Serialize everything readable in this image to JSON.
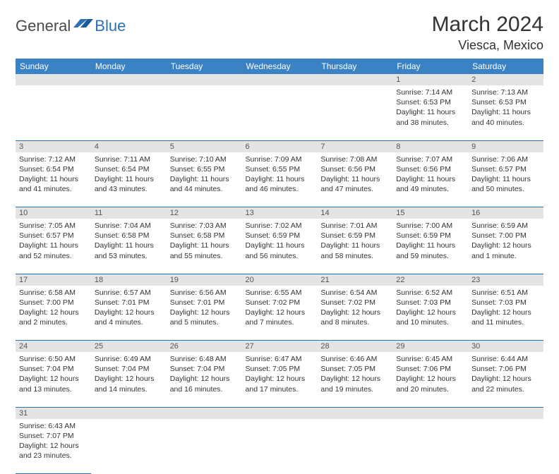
{
  "logo": {
    "part1": "General",
    "part2": "Blue"
  },
  "title": "March 2024",
  "location": "Viesca, Mexico",
  "colors": {
    "header_bg": "#3b82c4",
    "header_text": "#ffffff",
    "daynum_bg": "#e4e4e4",
    "border": "#2a72b5",
    "logo_gray": "#4a4a4a",
    "logo_blue": "#2a72b5",
    "text": "#333333"
  },
  "day_headers": [
    "Sunday",
    "Monday",
    "Tuesday",
    "Wednesday",
    "Thursday",
    "Friday",
    "Saturday"
  ],
  "weeks": [
    [
      null,
      null,
      null,
      null,
      null,
      {
        "n": "1",
        "sunrise": "Sunrise: 7:14 AM",
        "sunset": "Sunset: 6:53 PM",
        "daylight": "Daylight: 11 hours and 38 minutes."
      },
      {
        "n": "2",
        "sunrise": "Sunrise: 7:13 AM",
        "sunset": "Sunset: 6:53 PM",
        "daylight": "Daylight: 11 hours and 40 minutes."
      }
    ],
    [
      {
        "n": "3",
        "sunrise": "Sunrise: 7:12 AM",
        "sunset": "Sunset: 6:54 PM",
        "daylight": "Daylight: 11 hours and 41 minutes."
      },
      {
        "n": "4",
        "sunrise": "Sunrise: 7:11 AM",
        "sunset": "Sunset: 6:54 PM",
        "daylight": "Daylight: 11 hours and 43 minutes."
      },
      {
        "n": "5",
        "sunrise": "Sunrise: 7:10 AM",
        "sunset": "Sunset: 6:55 PM",
        "daylight": "Daylight: 11 hours and 44 minutes."
      },
      {
        "n": "6",
        "sunrise": "Sunrise: 7:09 AM",
        "sunset": "Sunset: 6:55 PM",
        "daylight": "Daylight: 11 hours and 46 minutes."
      },
      {
        "n": "7",
        "sunrise": "Sunrise: 7:08 AM",
        "sunset": "Sunset: 6:56 PM",
        "daylight": "Daylight: 11 hours and 47 minutes."
      },
      {
        "n": "8",
        "sunrise": "Sunrise: 7:07 AM",
        "sunset": "Sunset: 6:56 PM",
        "daylight": "Daylight: 11 hours and 49 minutes."
      },
      {
        "n": "9",
        "sunrise": "Sunrise: 7:06 AM",
        "sunset": "Sunset: 6:57 PM",
        "daylight": "Daylight: 11 hours and 50 minutes."
      }
    ],
    [
      {
        "n": "10",
        "sunrise": "Sunrise: 7:05 AM",
        "sunset": "Sunset: 6:57 PM",
        "daylight": "Daylight: 11 hours and 52 minutes."
      },
      {
        "n": "11",
        "sunrise": "Sunrise: 7:04 AM",
        "sunset": "Sunset: 6:58 PM",
        "daylight": "Daylight: 11 hours and 53 minutes."
      },
      {
        "n": "12",
        "sunrise": "Sunrise: 7:03 AM",
        "sunset": "Sunset: 6:58 PM",
        "daylight": "Daylight: 11 hours and 55 minutes."
      },
      {
        "n": "13",
        "sunrise": "Sunrise: 7:02 AM",
        "sunset": "Sunset: 6:59 PM",
        "daylight": "Daylight: 11 hours and 56 minutes."
      },
      {
        "n": "14",
        "sunrise": "Sunrise: 7:01 AM",
        "sunset": "Sunset: 6:59 PM",
        "daylight": "Daylight: 11 hours and 58 minutes."
      },
      {
        "n": "15",
        "sunrise": "Sunrise: 7:00 AM",
        "sunset": "Sunset: 6:59 PM",
        "daylight": "Daylight: 11 hours and 59 minutes."
      },
      {
        "n": "16",
        "sunrise": "Sunrise: 6:59 AM",
        "sunset": "Sunset: 7:00 PM",
        "daylight": "Daylight: 12 hours and 1 minute."
      }
    ],
    [
      {
        "n": "17",
        "sunrise": "Sunrise: 6:58 AM",
        "sunset": "Sunset: 7:00 PM",
        "daylight": "Daylight: 12 hours and 2 minutes."
      },
      {
        "n": "18",
        "sunrise": "Sunrise: 6:57 AM",
        "sunset": "Sunset: 7:01 PM",
        "daylight": "Daylight: 12 hours and 4 minutes."
      },
      {
        "n": "19",
        "sunrise": "Sunrise: 6:56 AM",
        "sunset": "Sunset: 7:01 PM",
        "daylight": "Daylight: 12 hours and 5 minutes."
      },
      {
        "n": "20",
        "sunrise": "Sunrise: 6:55 AM",
        "sunset": "Sunset: 7:02 PM",
        "daylight": "Daylight: 12 hours and 7 minutes."
      },
      {
        "n": "21",
        "sunrise": "Sunrise: 6:54 AM",
        "sunset": "Sunset: 7:02 PM",
        "daylight": "Daylight: 12 hours and 8 minutes."
      },
      {
        "n": "22",
        "sunrise": "Sunrise: 6:52 AM",
        "sunset": "Sunset: 7:03 PM",
        "daylight": "Daylight: 12 hours and 10 minutes."
      },
      {
        "n": "23",
        "sunrise": "Sunrise: 6:51 AM",
        "sunset": "Sunset: 7:03 PM",
        "daylight": "Daylight: 12 hours and 11 minutes."
      }
    ],
    [
      {
        "n": "24",
        "sunrise": "Sunrise: 6:50 AM",
        "sunset": "Sunset: 7:04 PM",
        "daylight": "Daylight: 12 hours and 13 minutes."
      },
      {
        "n": "25",
        "sunrise": "Sunrise: 6:49 AM",
        "sunset": "Sunset: 7:04 PM",
        "daylight": "Daylight: 12 hours and 14 minutes."
      },
      {
        "n": "26",
        "sunrise": "Sunrise: 6:48 AM",
        "sunset": "Sunset: 7:04 PM",
        "daylight": "Daylight: 12 hours and 16 minutes."
      },
      {
        "n": "27",
        "sunrise": "Sunrise: 6:47 AM",
        "sunset": "Sunset: 7:05 PM",
        "daylight": "Daylight: 12 hours and 17 minutes."
      },
      {
        "n": "28",
        "sunrise": "Sunrise: 6:46 AM",
        "sunset": "Sunset: 7:05 PM",
        "daylight": "Daylight: 12 hours and 19 minutes."
      },
      {
        "n": "29",
        "sunrise": "Sunrise: 6:45 AM",
        "sunset": "Sunset: 7:06 PM",
        "daylight": "Daylight: 12 hours and 20 minutes."
      },
      {
        "n": "30",
        "sunrise": "Sunrise: 6:44 AM",
        "sunset": "Sunset: 7:06 PM",
        "daylight": "Daylight: 12 hours and 22 minutes."
      }
    ],
    [
      {
        "n": "31",
        "sunrise": "Sunrise: 6:43 AM",
        "sunset": "Sunset: 7:07 PM",
        "daylight": "Daylight: 12 hours and 23 minutes."
      },
      null,
      null,
      null,
      null,
      null,
      null
    ]
  ]
}
